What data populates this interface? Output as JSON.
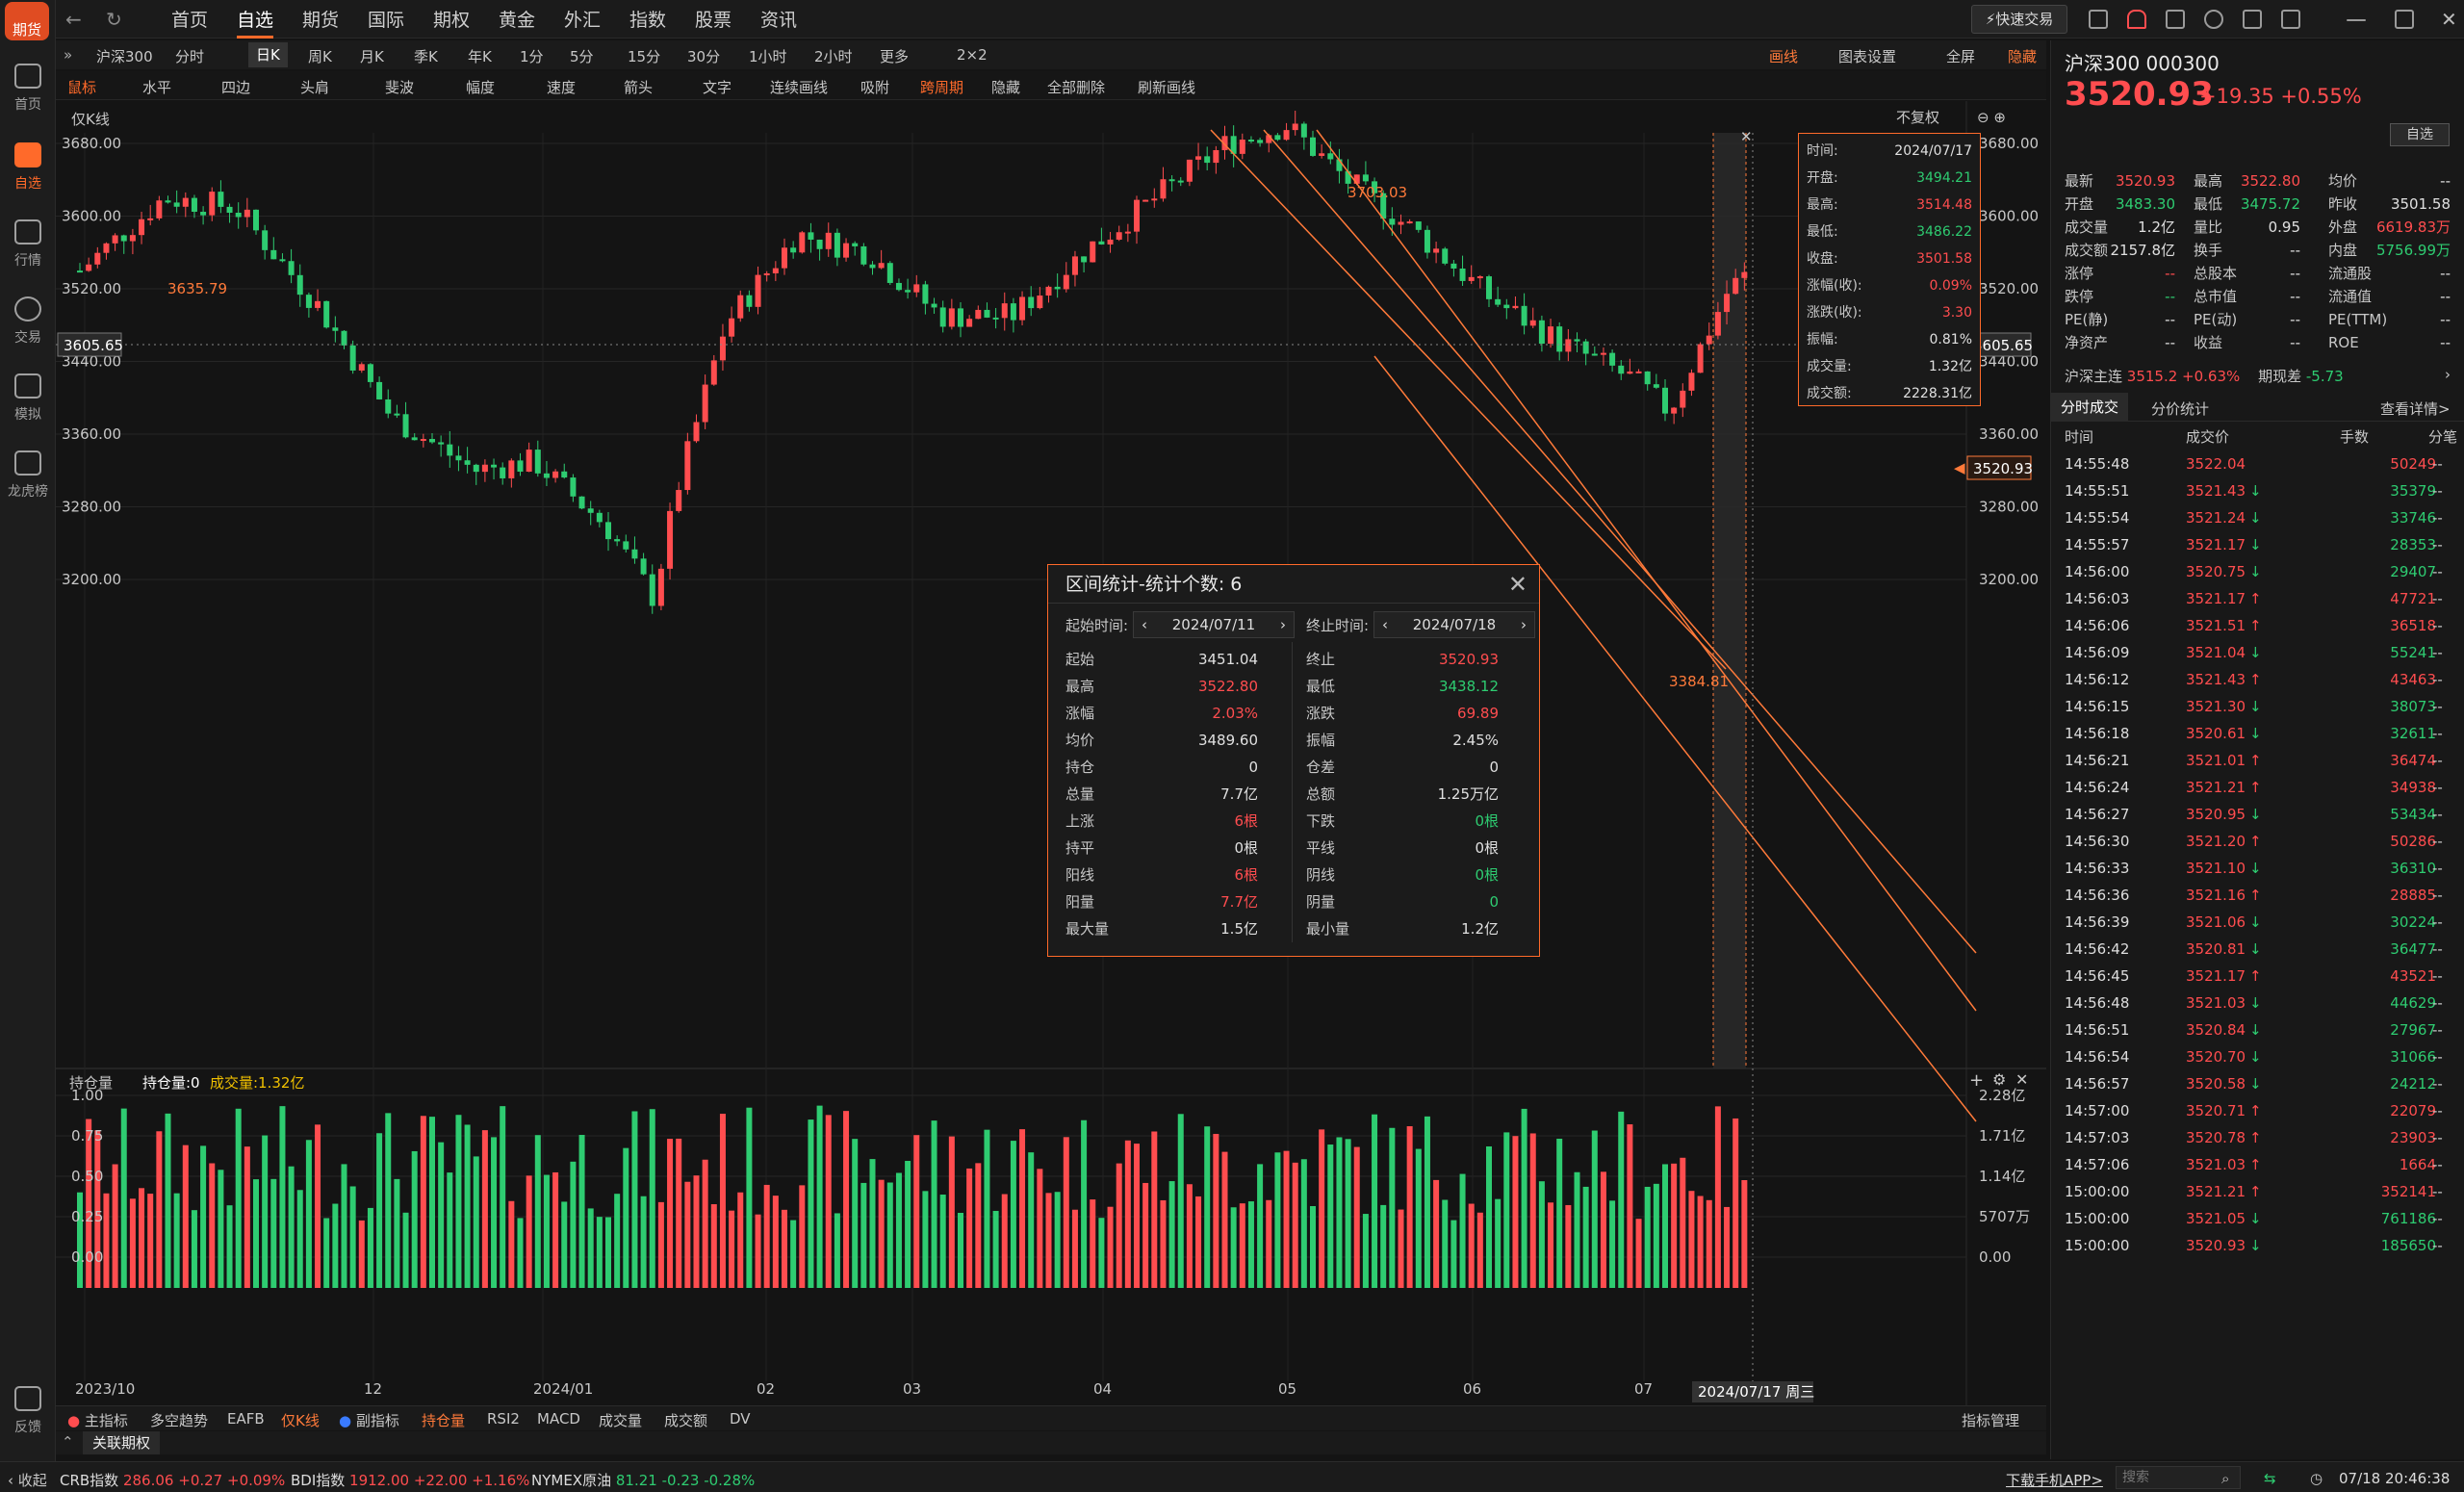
{
  "app": {
    "logo_text": "期货"
  },
  "sidebar": [
    {
      "label": "首页",
      "icon": "home-icon"
    },
    {
      "label": "自选",
      "icon": "star-plus-icon",
      "active": true
    },
    {
      "label": "行情",
      "icon": "chart-icon"
    },
    {
      "label": "交易",
      "icon": "yen-icon"
    },
    {
      "label": "模拟",
      "icon": "gamepad-icon"
    },
    {
      "label": "龙虎榜",
      "icon": "database-icon"
    },
    {
      "label": "反馈",
      "icon": "chat-icon"
    }
  ],
  "top_menu": [
    "首页",
    "自选",
    "期货",
    "国际",
    "期权",
    "黄金",
    "外汇",
    "指数",
    "股票",
    "资讯"
  ],
  "top_menu_active": "自选",
  "quick_trade": "快速交易",
  "symbol": "沪深300",
  "periods": [
    "分时",
    "日K",
    "周K",
    "月K",
    "季K",
    "年K",
    "1分",
    "5分",
    "15分",
    "30分",
    "1小时",
    "2小时",
    "更多",
    "2×2"
  ],
  "period_active": "日K",
  "right_tools": [
    "画线",
    "图表设置",
    "全屏",
    "隐藏"
  ],
  "draw_tools": [
    "鼠标",
    "水平",
    "四边",
    "头肩",
    "斐波",
    "幅度",
    "速度",
    "箭头",
    "文字",
    "连续画线",
    "吸附",
    "跨周期",
    "隐藏",
    "全部删除",
    "刷新画线"
  ],
  "chart_mode": "仅K线",
  "adjust_mode": "不复权",
  "chart_data": {
    "type": "candlestick",
    "y_ticks": [
      "3680.00",
      "3600.00",
      "3520.00",
      "3440.00",
      "3360.00",
      "3280.00",
      "3200.00"
    ],
    "x_ticks": [
      "2023/10",
      "12",
      "2024/01",
      "02",
      "03",
      "04",
      "05",
      "06",
      "07"
    ],
    "crosshair_price": "3605.65",
    "last_price_label": "3520.93",
    "annotations": [
      "3635.79",
      "3703.03",
      "3384.81"
    ],
    "cursor_date": "2024/07/17 周三",
    "volume_y_ticks": [
      "1.00",
      "0.75",
      "0.50",
      "0.25",
      "0.00"
    ],
    "volume_right_ticks": [
      "2.28亿",
      "1.71亿",
      "1.14亿",
      "5707万",
      "0.00"
    ]
  },
  "price_popup": [
    {
      "k": "时间:",
      "v": "2024/07/17",
      "c": ""
    },
    {
      "k": "开盘:",
      "v": "3494.21",
      "c": "green"
    },
    {
      "k": "最高:",
      "v": "3514.48",
      "c": "red"
    },
    {
      "k": "最低:",
      "v": "3486.22",
      "c": "green"
    },
    {
      "k": "收盘:",
      "v": "3501.58",
      "c": "red"
    },
    {
      "k": "涨幅(收):",
      "v": "0.09%",
      "c": "red"
    },
    {
      "k": "涨跌(收):",
      "v": "3.30",
      "c": "red"
    },
    {
      "k": "振幅:",
      "v": "0.81%",
      "c": ""
    },
    {
      "k": "成交量:",
      "v": "1.32亿",
      "c": ""
    },
    {
      "k": "成交额:",
      "v": "2228.31亿",
      "c": ""
    }
  ],
  "stats": {
    "title": "区间统计-统计个数: 6",
    "start_label": "起始时间:",
    "start_date": "2024/07/11",
    "end_label": "终止时间:",
    "end_date": "2024/07/18",
    "left": [
      {
        "k": "起始",
        "v": "3451.04",
        "c": ""
      },
      {
        "k": "最高",
        "v": "3522.80",
        "c": "red"
      },
      {
        "k": "涨幅",
        "v": "2.03%",
        "c": "red"
      },
      {
        "k": "均价",
        "v": "3489.60",
        "c": ""
      },
      {
        "k": "持仓",
        "v": "0",
        "c": ""
      },
      {
        "k": "总量",
        "v": "7.7亿",
        "c": ""
      },
      {
        "k": "上涨",
        "v": "6根",
        "c": "red"
      },
      {
        "k": "持平",
        "v": "0根",
        "c": ""
      },
      {
        "k": "阳线",
        "v": "6根",
        "c": "red"
      },
      {
        "k": "阳量",
        "v": "7.7亿",
        "c": "red"
      },
      {
        "k": "最大量",
        "v": "1.5亿",
        "c": ""
      }
    ],
    "right": [
      {
        "k": "终止",
        "v": "3520.93",
        "c": "red"
      },
      {
        "k": "最低",
        "v": "3438.12",
        "c": "green"
      },
      {
        "k": "涨跌",
        "v": "69.89",
        "c": "red"
      },
      {
        "k": "振幅",
        "v": "2.45%",
        "c": ""
      },
      {
        "k": "仓差",
        "v": "0",
        "c": ""
      },
      {
        "k": "总额",
        "v": "1.25万亿",
        "c": ""
      },
      {
        "k": "下跌",
        "v": "0根",
        "c": "green"
      },
      {
        "k": "平线",
        "v": "0根",
        "c": ""
      },
      {
        "k": "阴线",
        "v": "0根",
        "c": "green"
      },
      {
        "k": "阴量",
        "v": "0",
        "c": "green"
      },
      {
        "k": "最小量",
        "v": "1.2亿",
        "c": ""
      }
    ]
  },
  "volume_header": {
    "mode": "持仓量",
    "oi": "持仓量:0",
    "vol": "成交量:1.32亿"
  },
  "indicators": [
    "主指标",
    "多空趋势",
    "EAFB",
    "仅K线",
    "副指标",
    "持仓量",
    "RSI2",
    "MACD",
    "成交量",
    "成交额",
    "DV"
  ],
  "indicator_manage": "指标管理",
  "related_options": "关联期权",
  "quote": {
    "title": "沪深300  000300",
    "price": "3520.93",
    "change": "+19.35  +0.55%",
    "fav": "自选",
    "rows": [
      [
        {
          "k": "最新",
          "v": "3520.93",
          "c": "red"
        },
        {
          "k": "最高",
          "v": "3522.80",
          "c": "red"
        },
        {
          "k": "均价",
          "v": "--",
          "c": ""
        }
      ],
      [
        {
          "k": "开盘",
          "v": "3483.30",
          "c": "green"
        },
        {
          "k": "最低",
          "v": "3475.72",
          "c": "green"
        },
        {
          "k": "昨收",
          "v": "3501.58",
          "c": ""
        }
      ],
      [
        {
          "k": "成交量",
          "v": "1.2亿",
          "c": ""
        },
        {
          "k": "量比",
          "v": "0.95",
          "c": ""
        },
        {
          "k": "外盘",
          "v": "6619.83万",
          "c": "red"
        }
      ],
      [
        {
          "k": "成交额",
          "v": "2157.8亿",
          "c": ""
        },
        {
          "k": "换手",
          "v": "--",
          "c": ""
        },
        {
          "k": "内盘",
          "v": "5756.99万",
          "c": "green"
        }
      ],
      [
        {
          "k": "涨停",
          "v": "--",
          "c": "red"
        },
        {
          "k": "总股本",
          "v": "--",
          "c": ""
        },
        {
          "k": "流通股",
          "v": "--",
          "c": ""
        }
      ],
      [
        {
          "k": "跌停",
          "v": "--",
          "c": "green"
        },
        {
          "k": "总市值",
          "v": "--",
          "c": ""
        },
        {
          "k": "流通值",
          "v": "--",
          "c": ""
        }
      ],
      [
        {
          "k": "PE(静)",
          "v": "--",
          "c": ""
        },
        {
          "k": "PE(动)",
          "v": "--",
          "c": ""
        },
        {
          "k": "PE(TTM)",
          "v": "--",
          "c": ""
        }
      ],
      [
        {
          "k": "净资产",
          "v": "--",
          "c": ""
        },
        {
          "k": "收益",
          "v": "--",
          "c": ""
        },
        {
          "k": "ROE",
          "v": "--",
          "c": ""
        }
      ]
    ],
    "main_contract_label": "沪深主连",
    "main_contract_value": "3515.2  +0.63%",
    "basis_label": "期现差",
    "basis_value": "-5.73"
  },
  "trade_tabs": [
    "分时成交",
    "分价统计"
  ],
  "trade_detail": "查看详情>",
  "trade_headers": [
    "时间",
    "成交价",
    "手数",
    "分笔"
  ],
  "trades": [
    {
      "t": "14:55:48",
      "p": "3522.04",
      "d": "",
      "q": "50249",
      "qc": "red"
    },
    {
      "t": "14:55:51",
      "p": "3521.43",
      "d": "↓",
      "q": "35379",
      "qc": "green"
    },
    {
      "t": "14:55:54",
      "p": "3521.24",
      "d": "↓",
      "q": "33746",
      "qc": "green"
    },
    {
      "t": "14:55:57",
      "p": "3521.17",
      "d": "↓",
      "q": "28353",
      "qc": "green"
    },
    {
      "t": "14:56:00",
      "p": "3520.75",
      "d": "↓",
      "q": "29407",
      "qc": "green"
    },
    {
      "t": "14:56:03",
      "p": "3521.17",
      "d": "↑",
      "q": "47721",
      "qc": "red"
    },
    {
      "t": "14:56:06",
      "p": "3521.51",
      "d": "↑",
      "q": "36518",
      "qc": "red"
    },
    {
      "t": "14:56:09",
      "p": "3521.04",
      "d": "↓",
      "q": "55241",
      "qc": "green"
    },
    {
      "t": "14:56:12",
      "p": "3521.43",
      "d": "↑",
      "q": "43463",
      "qc": "red"
    },
    {
      "t": "14:56:15",
      "p": "3521.30",
      "d": "↓",
      "q": "38073",
      "qc": "green"
    },
    {
      "t": "14:56:18",
      "p": "3520.61",
      "d": "↓",
      "q": "32611",
      "qc": "green"
    },
    {
      "t": "14:56:21",
      "p": "3521.01",
      "d": "↑",
      "q": "36474",
      "qc": "red"
    },
    {
      "t": "14:56:24",
      "p": "3521.21",
      "d": "↑",
      "q": "34938",
      "qc": "red"
    },
    {
      "t": "14:56:27",
      "p": "3520.95",
      "d": "↓",
      "q": "53434",
      "qc": "green"
    },
    {
      "t": "14:56:30",
      "p": "3521.20",
      "d": "↑",
      "q": "50286",
      "qc": "red"
    },
    {
      "t": "14:56:33",
      "p": "3521.10",
      "d": "↓",
      "q": "36310",
      "qc": "green"
    },
    {
      "t": "14:56:36",
      "p": "3521.16",
      "d": "↑",
      "q": "28885",
      "qc": "red"
    },
    {
      "t": "14:56:39",
      "p": "3521.06",
      "d": "↓",
      "q": "30224",
      "qc": "green"
    },
    {
      "t": "14:56:42",
      "p": "3520.81",
      "d": "↓",
      "q": "36477",
      "qc": "green"
    },
    {
      "t": "14:56:45",
      "p": "3521.17",
      "d": "↑",
      "q": "43521",
      "qc": "red"
    },
    {
      "t": "14:56:48",
      "p": "3521.03",
      "d": "↓",
      "q": "44629",
      "qc": "green"
    },
    {
      "t": "14:56:51",
      "p": "3520.84",
      "d": "↓",
      "q": "27967",
      "qc": "green"
    },
    {
      "t": "14:56:54",
      "p": "3520.70",
      "d": "↓",
      "q": "31066",
      "qc": "green"
    },
    {
      "t": "14:56:57",
      "p": "3520.58",
      "d": "↓",
      "q": "24212",
      "qc": "green"
    },
    {
      "t": "14:57:00",
      "p": "3520.71",
      "d": "↑",
      "q": "22079",
      "qc": "red"
    },
    {
      "t": "14:57:03",
      "p": "3520.78",
      "d": "↑",
      "q": "23903",
      "qc": "red"
    },
    {
      "t": "14:57:06",
      "p": "3521.03",
      "d": "↑",
      "q": "1664",
      "qc": "red"
    },
    {
      "t": "15:00:00",
      "p": "3521.21",
      "d": "↑",
      "q": "352141",
      "qc": "red"
    },
    {
      "t": "15:00:00",
      "p": "3521.05",
      "d": "↓",
      "q": "761186",
      "qc": "green"
    },
    {
      "t": "15:00:00",
      "p": "3520.93",
      "d": "↓",
      "q": "185650",
      "qc": "green"
    }
  ],
  "statusbar": {
    "collapse": "收起",
    "items": [
      {
        "name": "CRB指数",
        "value": "286.06",
        "chg": "+0.27",
        "pct": "+0.09%",
        "c": "red"
      },
      {
        "name": "BDI指数",
        "value": "1912.00",
        "chg": "+22.00",
        "pct": "+1.16%",
        "c": "red"
      },
      {
        "name": "NYMEX原油",
        "value": "81.21",
        "chg": "-0.23",
        "pct": "-0.28%",
        "c": "green"
      }
    ],
    "download": "下载手机APP>",
    "search_placeholder": "搜索",
    "datetime": "07/18 20:46:38"
  }
}
